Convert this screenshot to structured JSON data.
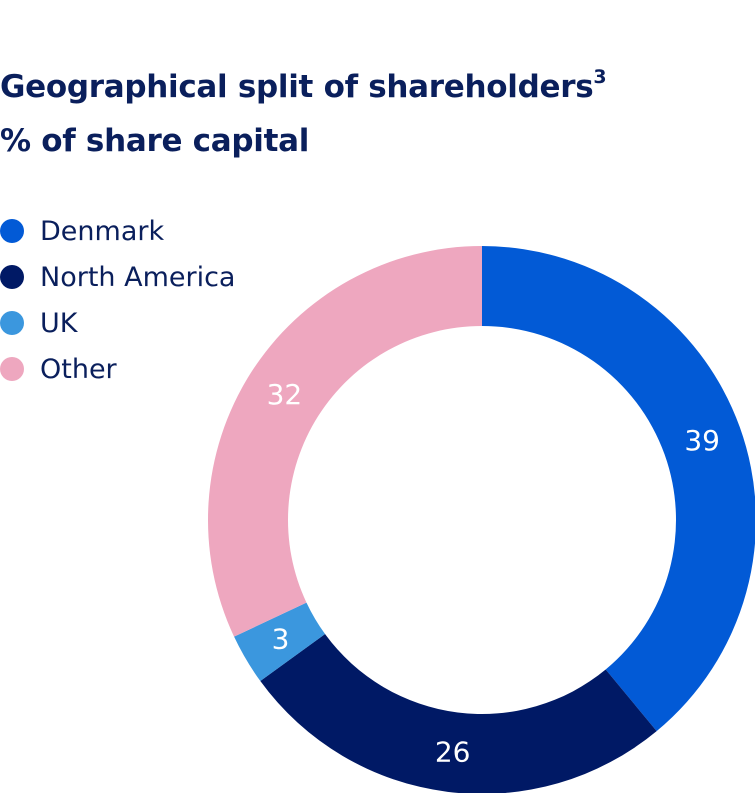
{
  "title_line1": "Geographical split of shareholders",
  "title_footnote": "3",
  "title_line2": "% of share capital",
  "chart_data": {
    "type": "pie",
    "subtype": "donut",
    "title": "Geographical split of shareholders",
    "subtitle": "% of share capital",
    "legend_position": "top-left",
    "slices": [
      {
        "label": "Denmark",
        "value": 39,
        "color": "#025ad6"
      },
      {
        "label": "North America",
        "value": 26,
        "color": "#001965"
      },
      {
        "label": "UK",
        "value": 3,
        "color": "#3b97de"
      },
      {
        "label": "Other",
        "value": 32,
        "color": "#eea7bf"
      }
    ]
  }
}
